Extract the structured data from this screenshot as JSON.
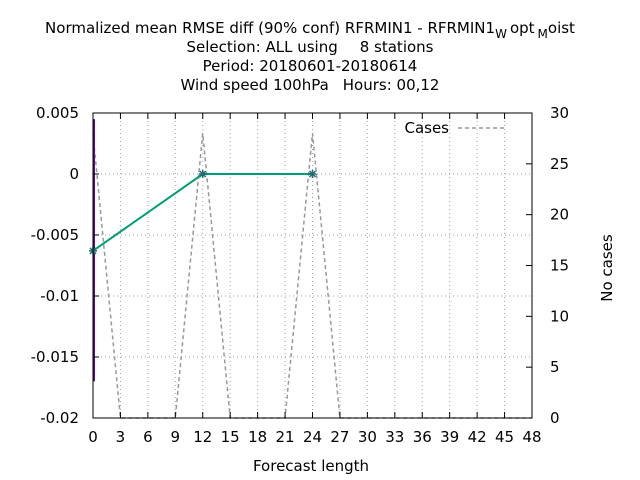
{
  "chart_data": {
    "type": "line",
    "title": {
      "line1_main": "Normalized mean RMSE diff (90% conf) RFRMIN1 - RFRMIN1",
      "line1_sub1": "W",
      "line1_mid": "opt",
      "line1_sub2": "M",
      "line1_end": "oist",
      "line2_prefix": "Selection: ALL using",
      "line2_suffix": "8 stations",
      "line3": "Period: 20180601-20180614",
      "line4_prefix": "Wind speed 100hPa",
      "line4_suffix": "Hours:  00,12"
    },
    "xlabel": "Forecast length",
    "ylabel_right": "No cases",
    "xlim": [
      0,
      48
    ],
    "ylim_left": [
      -0.02,
      0.005
    ],
    "ylim_right": [
      0,
      30
    ],
    "x_ticks": [
      0,
      3,
      6,
      9,
      12,
      15,
      18,
      21,
      24,
      27,
      30,
      33,
      36,
      39,
      42,
      45,
      48
    ],
    "y_ticks_left": [
      {
        "value": 0.005,
        "label": "0.005"
      },
      {
        "value": 0,
        "label": "0"
      },
      {
        "value": -0.005,
        "label": "-0.005"
      },
      {
        "value": -0.01,
        "label": "-0.01"
      },
      {
        "value": -0.015,
        "label": "-0.015"
      },
      {
        "value": -0.02,
        "label": "-0.02"
      }
    ],
    "y_ticks_right": [
      0,
      5,
      10,
      15,
      20,
      25,
      30
    ],
    "grid": true,
    "legend": {
      "position": "top-right",
      "entries": [
        "Cases"
      ]
    },
    "series": [
      {
        "axis": "left",
        "color": "#009e73",
        "x": [
          0,
          12,
          24
        ],
        "y": [
          -0.0063,
          0,
          0
        ]
      },
      {
        "name": "Cases",
        "axis": "right",
        "color": "#999999",
        "dashed": true,
        "x": [
          0,
          3,
          9,
          12,
          15,
          21,
          24,
          27,
          48
        ],
        "y": [
          28,
          0,
          0,
          28,
          0,
          0,
          28,
          0,
          0
        ]
      }
    ],
    "error_bar": {
      "x": 0,
      "low": -0.017,
      "high": 0.0045,
      "color": "#5b0a91"
    }
  }
}
